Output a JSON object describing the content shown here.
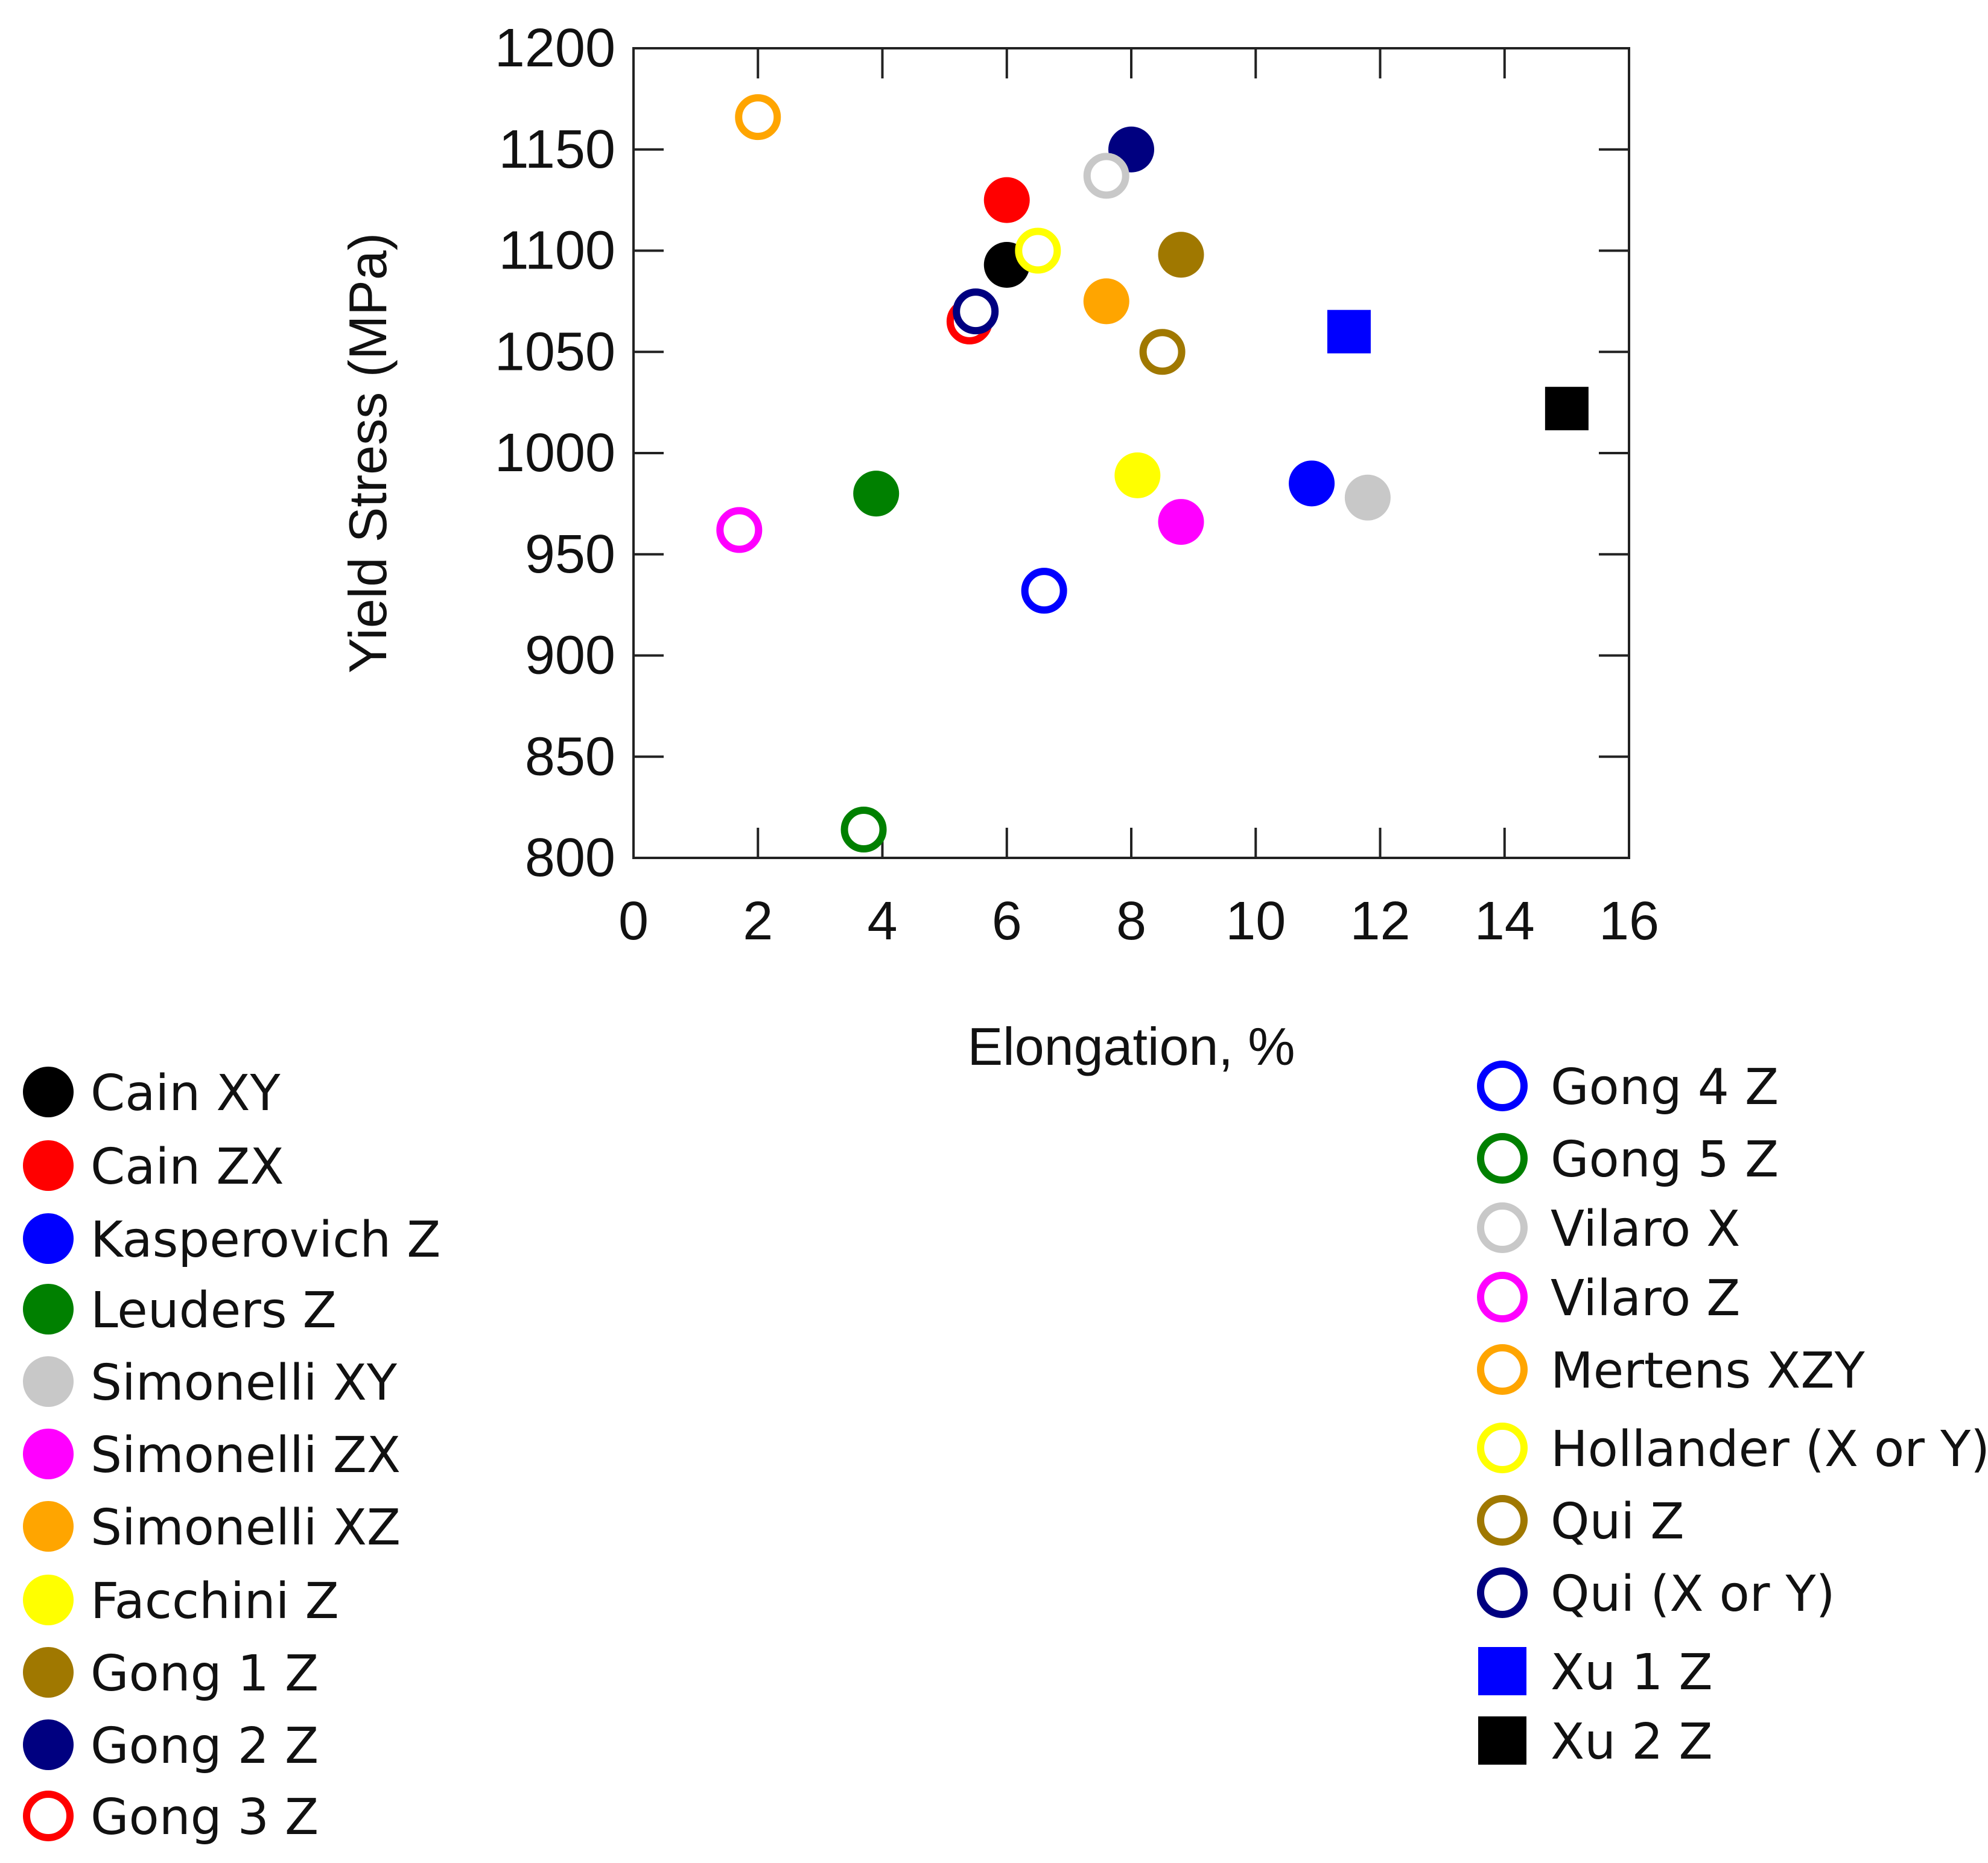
{
  "chart_data": {
    "type": "scatter",
    "xlabel": "Elongation, %",
    "ylabel": "Yield Stress (MPa)",
    "xlim": [
      0,
      16
    ],
    "ylim": [
      800,
      1200
    ],
    "xticks": [
      "0",
      "2",
      "4",
      "6",
      "8",
      "10",
      "12",
      "14",
      "16"
    ],
    "yticks": [
      "800",
      "850",
      "900",
      "950",
      "1000",
      "1050",
      "1100",
      "1150",
      "1200"
    ],
    "grid": false,
    "series": [
      {
        "name": "Cain XY",
        "marker": "filled-circle",
        "color": "#000000",
        "points": [
          {
            "x": 6.0,
            "y": 1093
          }
        ]
      },
      {
        "name": "Cain ZX",
        "marker": "filled-circle",
        "color": "#ff0000",
        "points": [
          {
            "x": 6.0,
            "y": 1125
          }
        ]
      },
      {
        "name": "Kasperovich Z",
        "marker": "filled-circle",
        "color": "#0000ff",
        "points": [
          {
            "x": 10.9,
            "y": 985
          }
        ]
      },
      {
        "name": "Leuders Z",
        "marker": "filled-circle",
        "color": "#008000",
        "points": [
          {
            "x": 3.9,
            "y": 980
          }
        ]
      },
      {
        "name": "Simonelli XY",
        "marker": "filled-circle",
        "color": "#c8c8c8",
        "points": [
          {
            "x": 11.8,
            "y": 978
          }
        ]
      },
      {
        "name": "Simonelli ZX",
        "marker": "filled-circle",
        "color": "#ff00ff",
        "points": [
          {
            "x": 8.8,
            "y": 966
          }
        ]
      },
      {
        "name": "Simonelli XZ",
        "marker": "filled-circle",
        "color": "#ffa500",
        "points": [
          {
            "x": 7.6,
            "y": 1075
          }
        ]
      },
      {
        "name": "Facchini Z",
        "marker": "filled-circle",
        "color": "#ffff00",
        "points": [
          {
            "x": 8.1,
            "y": 989
          }
        ]
      },
      {
        "name": "Gong 1 Z",
        "marker": "filled-circle",
        "color": "#a07800",
        "points": [
          {
            "x": 8.8,
            "y": 1098
          }
        ]
      },
      {
        "name": "Gong 2 Z",
        "marker": "filled-circle",
        "color": "#000080",
        "points": [
          {
            "x": 8.0,
            "y": 1150
          }
        ]
      },
      {
        "name": "Gong 3 Z",
        "marker": "open-circle",
        "color": "#ff0000",
        "points": [
          {
            "x": 5.4,
            "y": 1065
          }
        ]
      },
      {
        "name": "Gong 4 Z",
        "marker": "open-circle",
        "color": "#0000ff",
        "points": [
          {
            "x": 6.6,
            "y": 932
          }
        ]
      },
      {
        "name": "Gong 5 Z",
        "marker": "open-circle",
        "color": "#008000",
        "points": [
          {
            "x": 3.7,
            "y": 814
          }
        ]
      },
      {
        "name": "Vilaro X",
        "marker": "open-circle",
        "color": "#c8c8c8",
        "points": [
          {
            "x": 7.6,
            "y": 1137
          }
        ]
      },
      {
        "name": "Vilaro Z",
        "marker": "open-circle",
        "color": "#ff00ff",
        "points": [
          {
            "x": 1.7,
            "y": 962
          }
        ]
      },
      {
        "name": "Mertens XZY",
        "marker": "open-circle",
        "color": "#ffa500",
        "points": [
          {
            "x": 2.0,
            "y": 1166
          }
        ]
      },
      {
        "name": "Hollander (X or Y)",
        "marker": "open-circle",
        "color": "#ffff00",
        "points": [
          {
            "x": 6.5,
            "y": 1100
          }
        ]
      },
      {
        "name": "Qui Z",
        "marker": "open-circle",
        "color": "#a07800",
        "points": [
          {
            "x": 8.5,
            "y": 1050
          }
        ]
      },
      {
        "name": "Qui (X or Y)",
        "marker": "open-circle",
        "color": "#000080",
        "points": [
          {
            "x": 5.5,
            "y": 1070
          }
        ]
      },
      {
        "name": "Xu 1 Z",
        "marker": "filled-square",
        "color": "#0000ff",
        "points": [
          {
            "x": 11.5,
            "y": 1060
          }
        ]
      },
      {
        "name": "Xu 2 Z",
        "marker": "filled-square",
        "color": "#000000",
        "points": [
          {
            "x": 15.0,
            "y": 1022
          }
        ]
      }
    ]
  }
}
